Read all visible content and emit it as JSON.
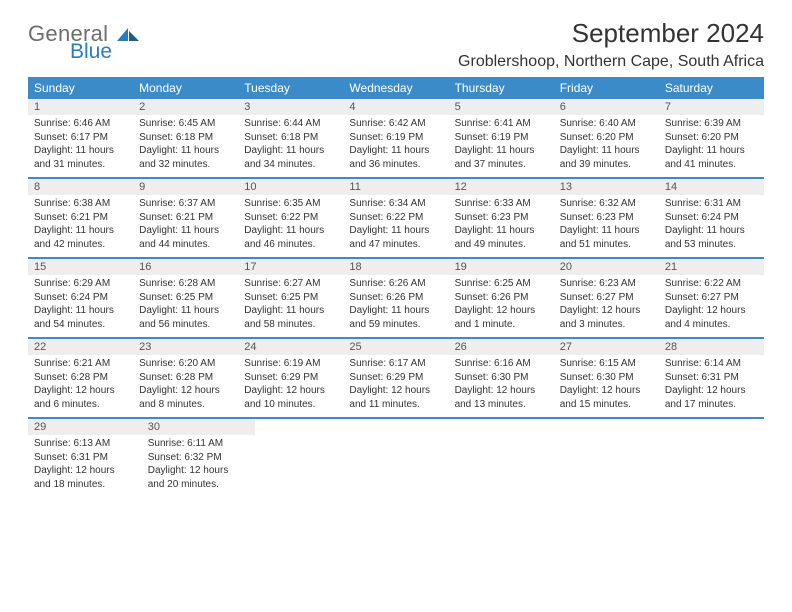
{
  "brand": {
    "word1": "General",
    "word2": "Blue"
  },
  "title": "September 2024",
  "location": "Groblershoop, Northern Cape, South Africa",
  "header_bg": "#3b8bc9",
  "daynum_bg": "#eeeeee",
  "dow": [
    "Sunday",
    "Monday",
    "Tuesday",
    "Wednesday",
    "Thursday",
    "Friday",
    "Saturday"
  ],
  "weeks": [
    [
      {
        "n": "1",
        "sr": "Sunrise: 6:46 AM",
        "ss": "Sunset: 6:17 PM",
        "d1": "Daylight: 11 hours",
        "d2": "and 31 minutes."
      },
      {
        "n": "2",
        "sr": "Sunrise: 6:45 AM",
        "ss": "Sunset: 6:18 PM",
        "d1": "Daylight: 11 hours",
        "d2": "and 32 minutes."
      },
      {
        "n": "3",
        "sr": "Sunrise: 6:44 AM",
        "ss": "Sunset: 6:18 PM",
        "d1": "Daylight: 11 hours",
        "d2": "and 34 minutes."
      },
      {
        "n": "4",
        "sr": "Sunrise: 6:42 AM",
        "ss": "Sunset: 6:19 PM",
        "d1": "Daylight: 11 hours",
        "d2": "and 36 minutes."
      },
      {
        "n": "5",
        "sr": "Sunrise: 6:41 AM",
        "ss": "Sunset: 6:19 PM",
        "d1": "Daylight: 11 hours",
        "d2": "and 37 minutes."
      },
      {
        "n": "6",
        "sr": "Sunrise: 6:40 AM",
        "ss": "Sunset: 6:20 PM",
        "d1": "Daylight: 11 hours",
        "d2": "and 39 minutes."
      },
      {
        "n": "7",
        "sr": "Sunrise: 6:39 AM",
        "ss": "Sunset: 6:20 PM",
        "d1": "Daylight: 11 hours",
        "d2": "and 41 minutes."
      }
    ],
    [
      {
        "n": "8",
        "sr": "Sunrise: 6:38 AM",
        "ss": "Sunset: 6:21 PM",
        "d1": "Daylight: 11 hours",
        "d2": "and 42 minutes."
      },
      {
        "n": "9",
        "sr": "Sunrise: 6:37 AM",
        "ss": "Sunset: 6:21 PM",
        "d1": "Daylight: 11 hours",
        "d2": "and 44 minutes."
      },
      {
        "n": "10",
        "sr": "Sunrise: 6:35 AM",
        "ss": "Sunset: 6:22 PM",
        "d1": "Daylight: 11 hours",
        "d2": "and 46 minutes."
      },
      {
        "n": "11",
        "sr": "Sunrise: 6:34 AM",
        "ss": "Sunset: 6:22 PM",
        "d1": "Daylight: 11 hours",
        "d2": "and 47 minutes."
      },
      {
        "n": "12",
        "sr": "Sunrise: 6:33 AM",
        "ss": "Sunset: 6:23 PM",
        "d1": "Daylight: 11 hours",
        "d2": "and 49 minutes."
      },
      {
        "n": "13",
        "sr": "Sunrise: 6:32 AM",
        "ss": "Sunset: 6:23 PM",
        "d1": "Daylight: 11 hours",
        "d2": "and 51 minutes."
      },
      {
        "n": "14",
        "sr": "Sunrise: 6:31 AM",
        "ss": "Sunset: 6:24 PM",
        "d1": "Daylight: 11 hours",
        "d2": "and 53 minutes."
      }
    ],
    [
      {
        "n": "15",
        "sr": "Sunrise: 6:29 AM",
        "ss": "Sunset: 6:24 PM",
        "d1": "Daylight: 11 hours",
        "d2": "and 54 minutes."
      },
      {
        "n": "16",
        "sr": "Sunrise: 6:28 AM",
        "ss": "Sunset: 6:25 PM",
        "d1": "Daylight: 11 hours",
        "d2": "and 56 minutes."
      },
      {
        "n": "17",
        "sr": "Sunrise: 6:27 AM",
        "ss": "Sunset: 6:25 PM",
        "d1": "Daylight: 11 hours",
        "d2": "and 58 minutes."
      },
      {
        "n": "18",
        "sr": "Sunrise: 6:26 AM",
        "ss": "Sunset: 6:26 PM",
        "d1": "Daylight: 11 hours",
        "d2": "and 59 minutes."
      },
      {
        "n": "19",
        "sr": "Sunrise: 6:25 AM",
        "ss": "Sunset: 6:26 PM",
        "d1": "Daylight: 12 hours",
        "d2": "and 1 minute."
      },
      {
        "n": "20",
        "sr": "Sunrise: 6:23 AM",
        "ss": "Sunset: 6:27 PM",
        "d1": "Daylight: 12 hours",
        "d2": "and 3 minutes."
      },
      {
        "n": "21",
        "sr": "Sunrise: 6:22 AM",
        "ss": "Sunset: 6:27 PM",
        "d1": "Daylight: 12 hours",
        "d2": "and 4 minutes."
      }
    ],
    [
      {
        "n": "22",
        "sr": "Sunrise: 6:21 AM",
        "ss": "Sunset: 6:28 PM",
        "d1": "Daylight: 12 hours",
        "d2": "and 6 minutes."
      },
      {
        "n": "23",
        "sr": "Sunrise: 6:20 AM",
        "ss": "Sunset: 6:28 PM",
        "d1": "Daylight: 12 hours",
        "d2": "and 8 minutes."
      },
      {
        "n": "24",
        "sr": "Sunrise: 6:19 AM",
        "ss": "Sunset: 6:29 PM",
        "d1": "Daylight: 12 hours",
        "d2": "and 10 minutes."
      },
      {
        "n": "25",
        "sr": "Sunrise: 6:17 AM",
        "ss": "Sunset: 6:29 PM",
        "d1": "Daylight: 12 hours",
        "d2": "and 11 minutes."
      },
      {
        "n": "26",
        "sr": "Sunrise: 6:16 AM",
        "ss": "Sunset: 6:30 PM",
        "d1": "Daylight: 12 hours",
        "d2": "and 13 minutes."
      },
      {
        "n": "27",
        "sr": "Sunrise: 6:15 AM",
        "ss": "Sunset: 6:30 PM",
        "d1": "Daylight: 12 hours",
        "d2": "and 15 minutes."
      },
      {
        "n": "28",
        "sr": "Sunrise: 6:14 AM",
        "ss": "Sunset: 6:31 PM",
        "d1": "Daylight: 12 hours",
        "d2": "and 17 minutes."
      }
    ],
    [
      {
        "n": "29",
        "sr": "Sunrise: 6:13 AM",
        "ss": "Sunset: 6:31 PM",
        "d1": "Daylight: 12 hours",
        "d2": "and 18 minutes."
      },
      {
        "n": "30",
        "sr": "Sunrise: 6:11 AM",
        "ss": "Sunset: 6:32 PM",
        "d1": "Daylight: 12 hours",
        "d2": "and 20 minutes."
      },
      null,
      null,
      null,
      null,
      null
    ]
  ]
}
